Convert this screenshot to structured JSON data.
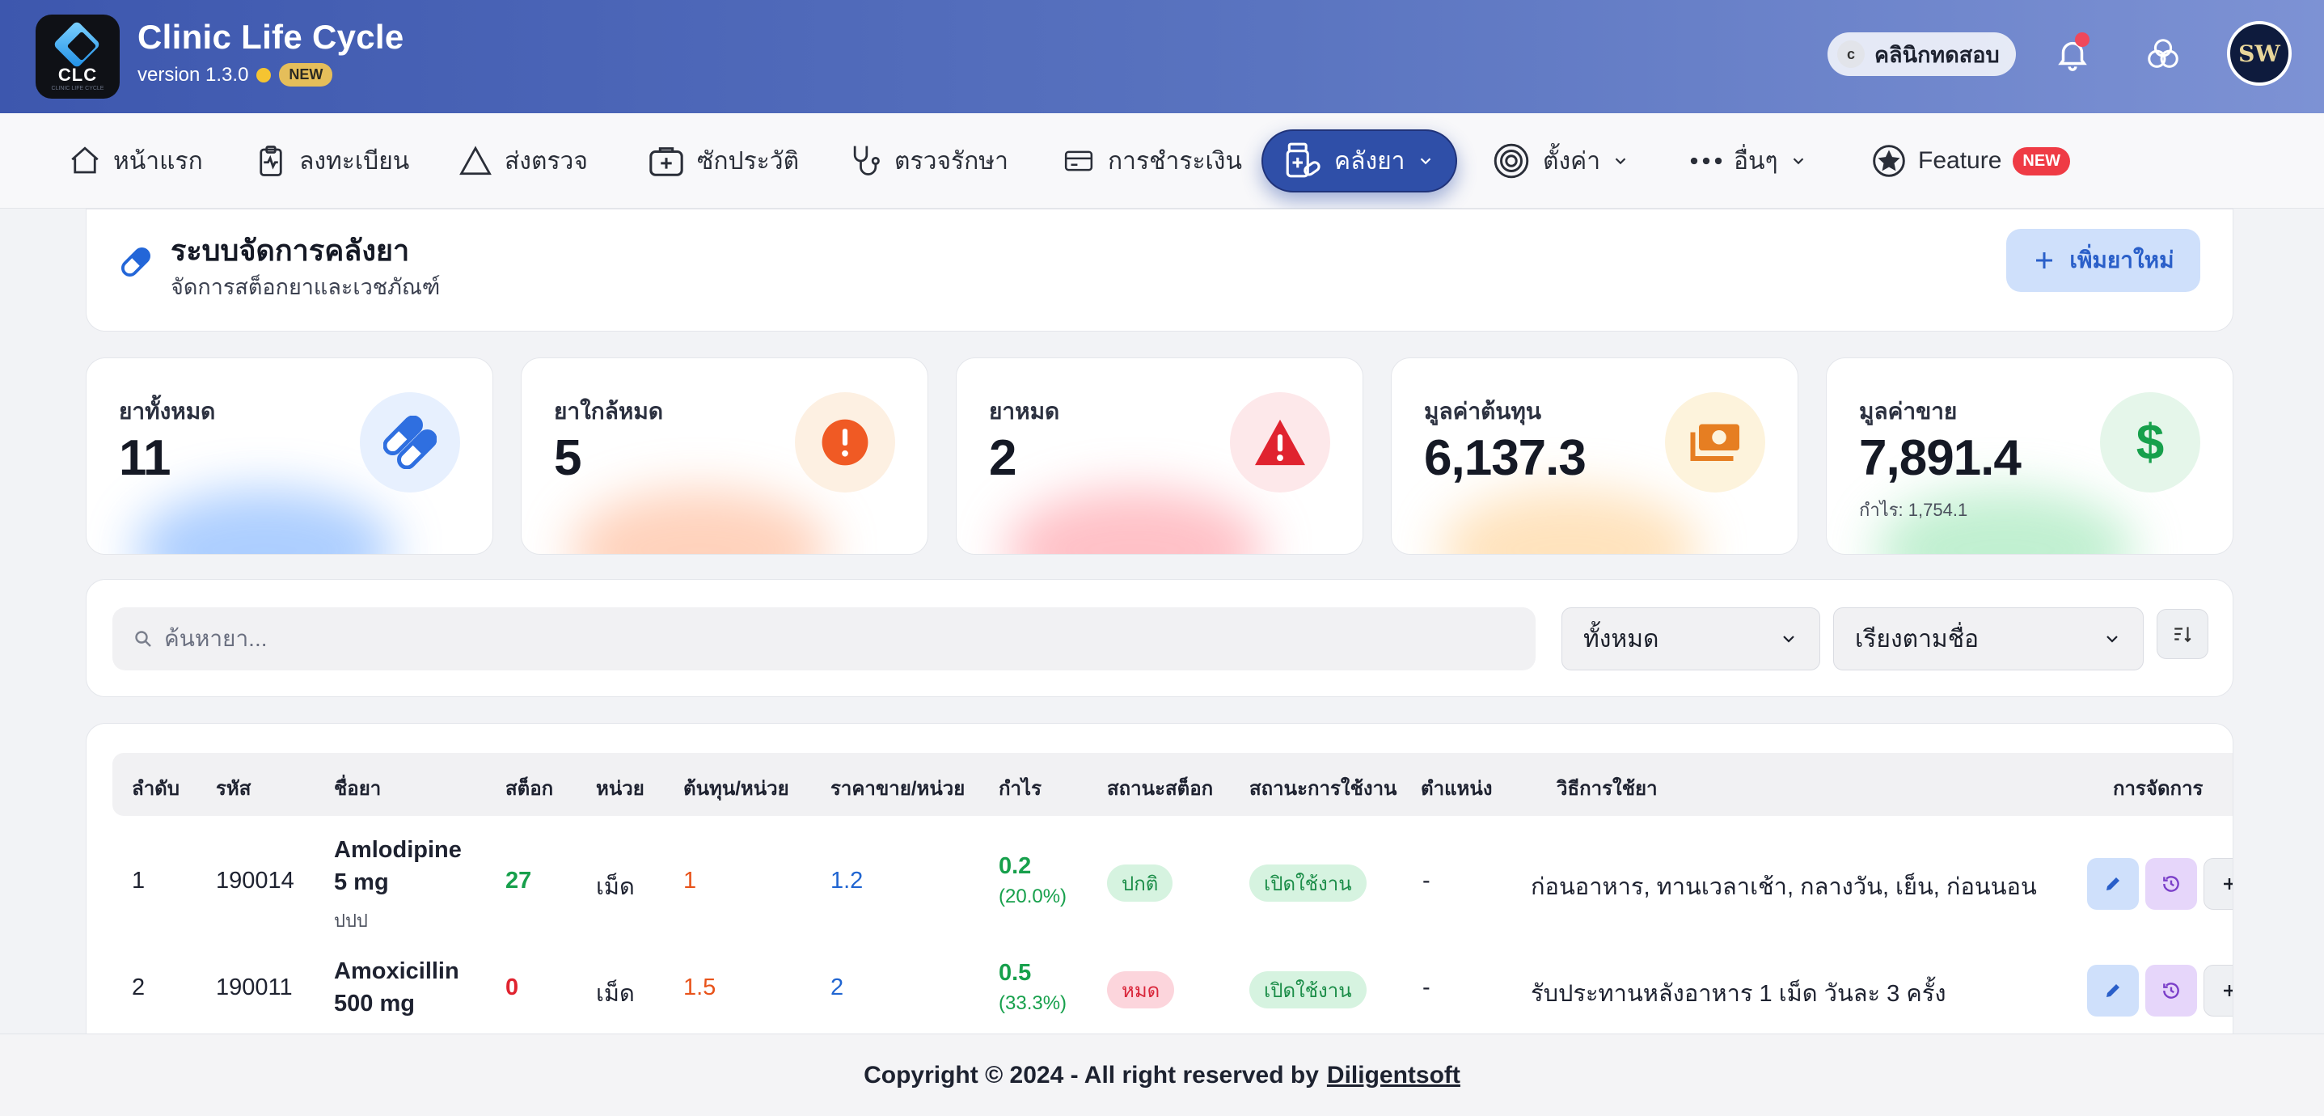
{
  "app": {
    "title": "Clinic Life Cycle",
    "logo_text": "CLC",
    "logo_sub": "CLINIC LIFE CYCLE",
    "version": "version 1.3.0",
    "version_badge": "NEW",
    "clinic_initial": "c",
    "clinic_name": "คลินิกทดสอบ",
    "avatar_text": "SW"
  },
  "nav": {
    "items": [
      {
        "label": "หน้าแรก",
        "icon": "home-icon"
      },
      {
        "label": "ลงทะเบียน",
        "icon": "clipboard-icon"
      },
      {
        "label": "ส่งตรวจ",
        "icon": "triangle-icon"
      },
      {
        "label": "ซักประวัติ",
        "icon": "medical-kit-icon"
      },
      {
        "label": "ตรวจรักษา",
        "icon": "stethoscope-icon"
      },
      {
        "label": "การชำระเงิน",
        "icon": "credit-card-icon"
      },
      {
        "label": "คลังยา",
        "icon": "pill-bottle-icon",
        "active": true
      },
      {
        "label": "ตั้งค่า",
        "icon": "gear-icon"
      },
      {
        "label": "อื่นๆ",
        "icon": "more-icon"
      },
      {
        "label": "Feature",
        "icon": "star-icon",
        "badge": "NEW"
      }
    ]
  },
  "page": {
    "title": "ระบบจัดการคลังยา",
    "subtitle": "จัดการสต็อกยาและเวชภัณฑ์",
    "add_button": "เพิ่มยาใหม่"
  },
  "stats": [
    {
      "label": "ยาทั้งหมด",
      "value": "11",
      "icon": "capsule-icon",
      "accent": "#2f6fe0"
    },
    {
      "label": "ยาใกล้หมด",
      "value": "5",
      "icon": "alert-circle-icon",
      "accent": "#f05a24"
    },
    {
      "label": "ยาหมด",
      "value": "2",
      "icon": "warning-triangle-icon",
      "accent": "#e0232f"
    },
    {
      "label": "มูลค่าต้นทุน",
      "value": "6,137.3",
      "icon": "money-bill-icon",
      "accent": "#e67e22"
    },
    {
      "label": "มูลค่าขาย",
      "value": "7,891.4",
      "sub": "กำไร: 1,754.1",
      "icon": "dollar-icon",
      "accent": "#17a04c"
    }
  ],
  "filters": {
    "search_placeholder": "ค้นหายา...",
    "category": "ทั้งหมด",
    "sort": "เรียงตามชื่อ"
  },
  "table": {
    "headers": [
      "ลำดับ",
      "รหัส",
      "ชื่อยา",
      "สต็อก",
      "หน่วย",
      "ต้นทุน/หน่วย",
      "ราคาขาย/หน่วย",
      "กำไร",
      "สถานะสต็อก",
      "สถานะการใช้งาน",
      "ตำแหน่ง",
      "วิธีการใช้ยา",
      "การจัดการ"
    ],
    "rows": [
      {
        "no": "1",
        "code": "190014",
        "name_l1": "Amlodipine",
        "name_l2": "5 mg",
        "name_note": "ปปป",
        "stock": "27",
        "unit": "เม็ด",
        "cost": "1",
        "price": "1.2",
        "profit": "0.2",
        "profit_pct": "(20.0%)",
        "stock_status": "ปกติ",
        "use_status": "เปิดใช้งาน",
        "location": "-",
        "usage": "ก่อนอาหาร, ทานเวลาเช้า, กลางวัน, เย็น, ก่อนนอน"
      },
      {
        "no": "2",
        "code": "190011",
        "name_l1": "Amoxicillin",
        "name_l2": "500 mg",
        "name_note": "",
        "stock": "0",
        "unit": "เม็ด",
        "cost": "1.5",
        "price": "2",
        "profit": "0.5",
        "profit_pct": "(33.3%)",
        "stock_status": "หมด",
        "use_status": "เปิดใช้งาน",
        "location": "-",
        "usage": "รับประทานหลังอาหาร 1 เม็ด วันละ 3 ครั้ง"
      }
    ]
  },
  "footer": {
    "text": "Copyright © 2024 - All right reserved by",
    "link": "Diligentsoft"
  }
}
